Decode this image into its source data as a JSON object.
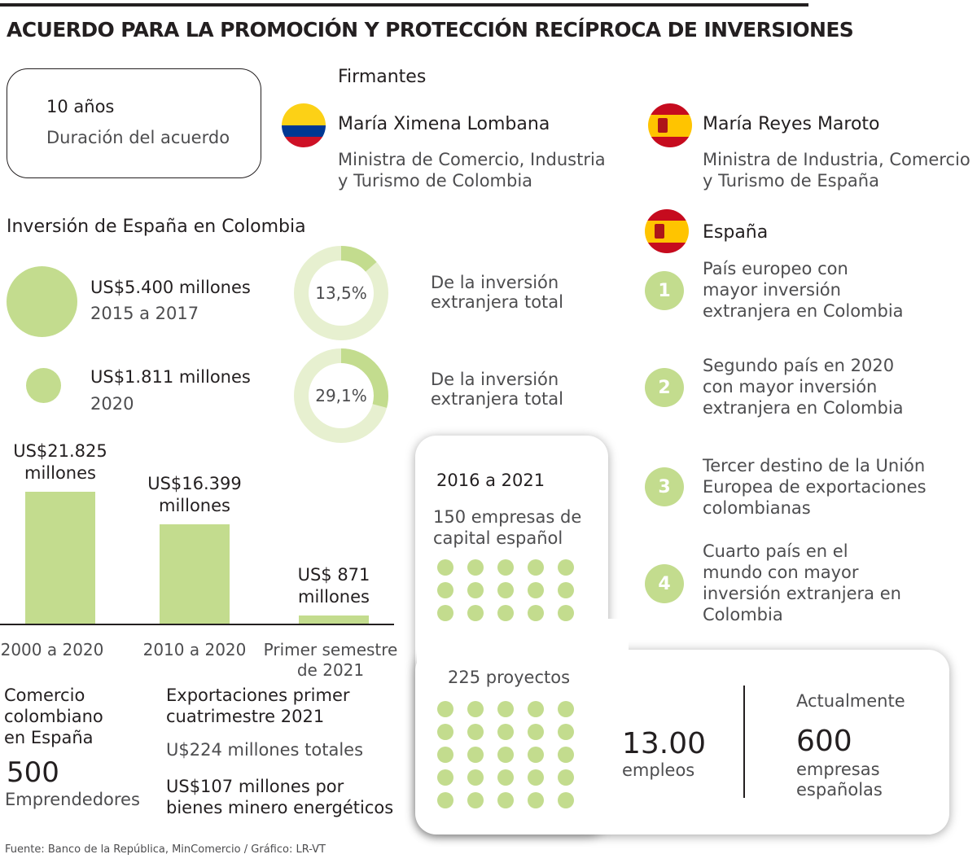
{
  "title": "ACUERDO PARA LA PROMOCIÓN Y PROTECCIÓN RECÍPROCA DE INVERSIONES",
  "duration": {
    "value": "10 años",
    "label": "Duración del acuerdo"
  },
  "signers": {
    "heading": "Firmantes",
    "colombia": {
      "name": "María Ximena Lombana",
      "role_line1": "Ministra de Comercio, Industria",
      "role_line2": "y Turismo de Colombia",
      "flag": "colombia-flag-icon"
    },
    "spain": {
      "name": "María Reyes Maroto",
      "role_line1": "Ministra de Industria, Comercio",
      "role_line2": "y Turismo de España",
      "flag": "spain-flag-icon"
    }
  },
  "investment": {
    "heading": "Inversión de España en Colombia",
    "items": [
      {
        "amount": "US$5.400 millones",
        "period": "2015 a 2017",
        "percent": "13,5%",
        "share": 0.135,
        "desc_line1": "De la inversión",
        "desc_line2": "extranjera total"
      },
      {
        "amount": "US$1.811 millones",
        "period": "2020",
        "percent": "29,1%",
        "share": 0.291,
        "desc_line1": "De la inversión",
        "desc_line2": "extranjera total"
      }
    ]
  },
  "bars": {
    "items": [
      {
        "label_line1": "US$21.825",
        "label_line2": "millones",
        "value": 21825,
        "cat_line1": "2000  a 2020",
        "cat_line2": ""
      },
      {
        "label_line1": "US$16.399",
        "label_line2": "millones",
        "value": 16399,
        "cat_line1": "2010 a 2020",
        "cat_line2": ""
      },
      {
        "label_line1": "US$ 871",
        "label_line2": "millones",
        "value": 871,
        "cat_line1": "Primer semestre",
        "cat_line2": "de 2021"
      }
    ]
  },
  "spain_facts": {
    "heading": "España",
    "items": [
      {
        "num": "1",
        "lines": [
          "País europeo con",
          "mayor inversión",
          "extranjera en Colombia"
        ]
      },
      {
        "num": "2",
        "lines": [
          "Segundo país en 2020",
          "con mayor inversión",
          "extranjera en Colombia"
        ]
      },
      {
        "num": "3",
        "lines": [
          "Tercer destino de la Unión",
          "Europea de exportaciones",
          "colombianas"
        ]
      },
      {
        "num": "4",
        "lines": [
          "Cuarto país en el",
          "mundo con mayor",
          "inversión extranjera en",
          "Colombia"
        ]
      }
    ]
  },
  "companies": {
    "period": "2016 a 2021",
    "companies_line1": "150 empresas de",
    "companies_line2": "capital español",
    "projects": "225 proyectos",
    "jobs_value": "13.00",
    "jobs_label": "empleos",
    "current_heading": "Actualmente",
    "current_value": "600",
    "current_line1": "empresas",
    "current_line2": "españolas"
  },
  "trade": {
    "heading_line1": "Comercio",
    "heading_line2": "colombiano",
    "heading_line3": "en España",
    "value": "500",
    "label": "Emprendedores"
  },
  "exports": {
    "heading_line1": "Exportaciones primer",
    "heading_line2": "cuatrimestre 2021",
    "total": "U$224 millones totales",
    "mining_line1": "US$107 millones por",
    "mining_line2": "bienes minero energéticos"
  },
  "source": "Fuente: Banco de la República, MinComercio / Gráfico: LR-VT",
  "colors": {
    "accent": "#c3dc8e",
    "accent_pale": "#e7f0d0",
    "text": "#231f20"
  }
}
